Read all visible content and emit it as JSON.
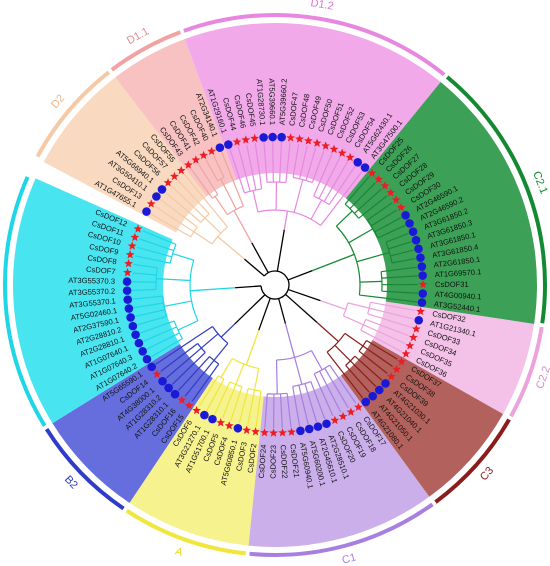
{
  "clades": [
    {
      "id": "D2",
      "color": "#f8d2b4",
      "barColor": "#f5c9a5",
      "labelColor": "#e9b78d",
      "leaves": [
        "AT1G47655.1",
        "CsDOF13",
        "AT3G50410.1",
        "AT5G66940.1",
        "CsDOF56",
        "CsDOF57",
        "CsDOF55"
      ]
    },
    {
      "id": "D1.1",
      "color": "#f7b7b7",
      "barColor": "#f2a2a2",
      "labelColor": "#e38f8f",
      "leaves": [
        "CsDOF43",
        "CsDOF41",
        "CsDOF42",
        "CsDOF40",
        "AT2G34140.1"
      ]
    },
    {
      "id": "D1.2",
      "color": "#ee9ae6",
      "barColor": "#e887e0",
      "labelColor": "#d975d1",
      "leaves": [
        "AT1G29160.1",
        "CsDOF44",
        "CsDOF46",
        "CsDOF45",
        "AT1G28730.1",
        "AT5G39660.1",
        "AT5G39660.2",
        "CsDOF47",
        "CsDOF48",
        "CsDOF49",
        "CsDOF50",
        "CsDOF51",
        "CsDOF52",
        "CsDOF53",
        "CsDOF54",
        "AT5G62430.1",
        "AT3G47500.1"
      ]
    },
    {
      "id": "C2.1",
      "color": "#1b8f3a",
      "barColor": "#138a32",
      "labelColor": "#138a32",
      "leaves": [
        "CsDOF25",
        "CsDOF26",
        "CsDOF27",
        "CsDOF28",
        "CsDOF29",
        "CsDOF30",
        "AT2G46590.1",
        "AT2G46590.2",
        "AT3G61850.2",
        "AT3G61850.3",
        "AT3G61850.1",
        "AT3G61850.4",
        "AT2G61850.1",
        "AT1G69570.1",
        "CsDOF31",
        "AT4G00940.1",
        "AT3G52440.1"
      ]
    },
    {
      "id": "C2.2",
      "color": "#f2b6e4",
      "barColor": "#eca2dc",
      "labelColor": "#d98ac9",
      "leaves": [
        "CsDOF32",
        "AT1G21340.1",
        "CsDOF33",
        "CsDOF34",
        "CsDOF35",
        "CsDOF36"
      ]
    },
    {
      "id": "C3",
      "color": "#a5453f",
      "barColor": "#8c1c1c",
      "labelColor": "#8c1c1c",
      "leaves": [
        "CsDOF37",
        "CsDOF38",
        "CsDOF39",
        "AT4G21030.1",
        "AT4G21040.1",
        "AT4G21050.1",
        "AT4G21080.1"
      ]
    },
    {
      "id": "C1",
      "color": "#c1a1e8",
      "barColor": "#a77fe0",
      "labelColor": "#a77fe0",
      "leaves": [
        "CsDOF17",
        "CsDOF18",
        "CsDOF19",
        "CsDOF20",
        "AT2G28510.1",
        "AT2G45610.1",
        "AT5G60200.1",
        "AT5G60940.1",
        "CsDOF21",
        "CsDOF22",
        "CsDOF23",
        "CsDOF24"
      ]
    },
    {
      "id": "A",
      "color": "#f5f07a",
      "barColor": "#f0e63c",
      "labelColor": "#e6d91f",
      "leaves": [
        "CsDOF2",
        "CsDOF3",
        "AT5G60850.1",
        "CsDOF4",
        "CsDOF5",
        "AT1G51700.1",
        "AT3G21270.1",
        "CsDOF6"
      ]
    },
    {
      "id": "B2",
      "color": "#4a55d6",
      "barColor": "#2f3bc9",
      "labelColor": "#2f3bc9",
      "leaves": [
        "CsDOF15",
        "CsDOF16",
        "AT1G28310.1",
        "AT1G28310.2",
        "AT4G38000.1",
        "CsDOF14",
        "AT5G65590.1"
      ]
    },
    {
      "id": "B1",
      "color": "#28e0ef",
      "barColor": "#1ed6e6",
      "labelColor": "#14c5d6",
      "leaves": [
        "AT1G07640.2",
        "AT1G07640.3",
        "AT1G07640.1",
        "AT2G28810.1",
        "AT2G28810.2",
        "AT2G37590.1",
        "AT5G02460.1",
        "AT3G55370.1",
        "AT3G55370.2",
        "AT3G55370.3",
        "CsDOF7",
        "CsDOF8",
        "CsDOF9",
        "CsDOF10",
        "CsDOF11",
        "CsDOF12"
      ]
    }
  ],
  "colors": {
    "star": "#ee1c25",
    "circle": "#1a1ad6",
    "trunk": "#000000"
  }
}
